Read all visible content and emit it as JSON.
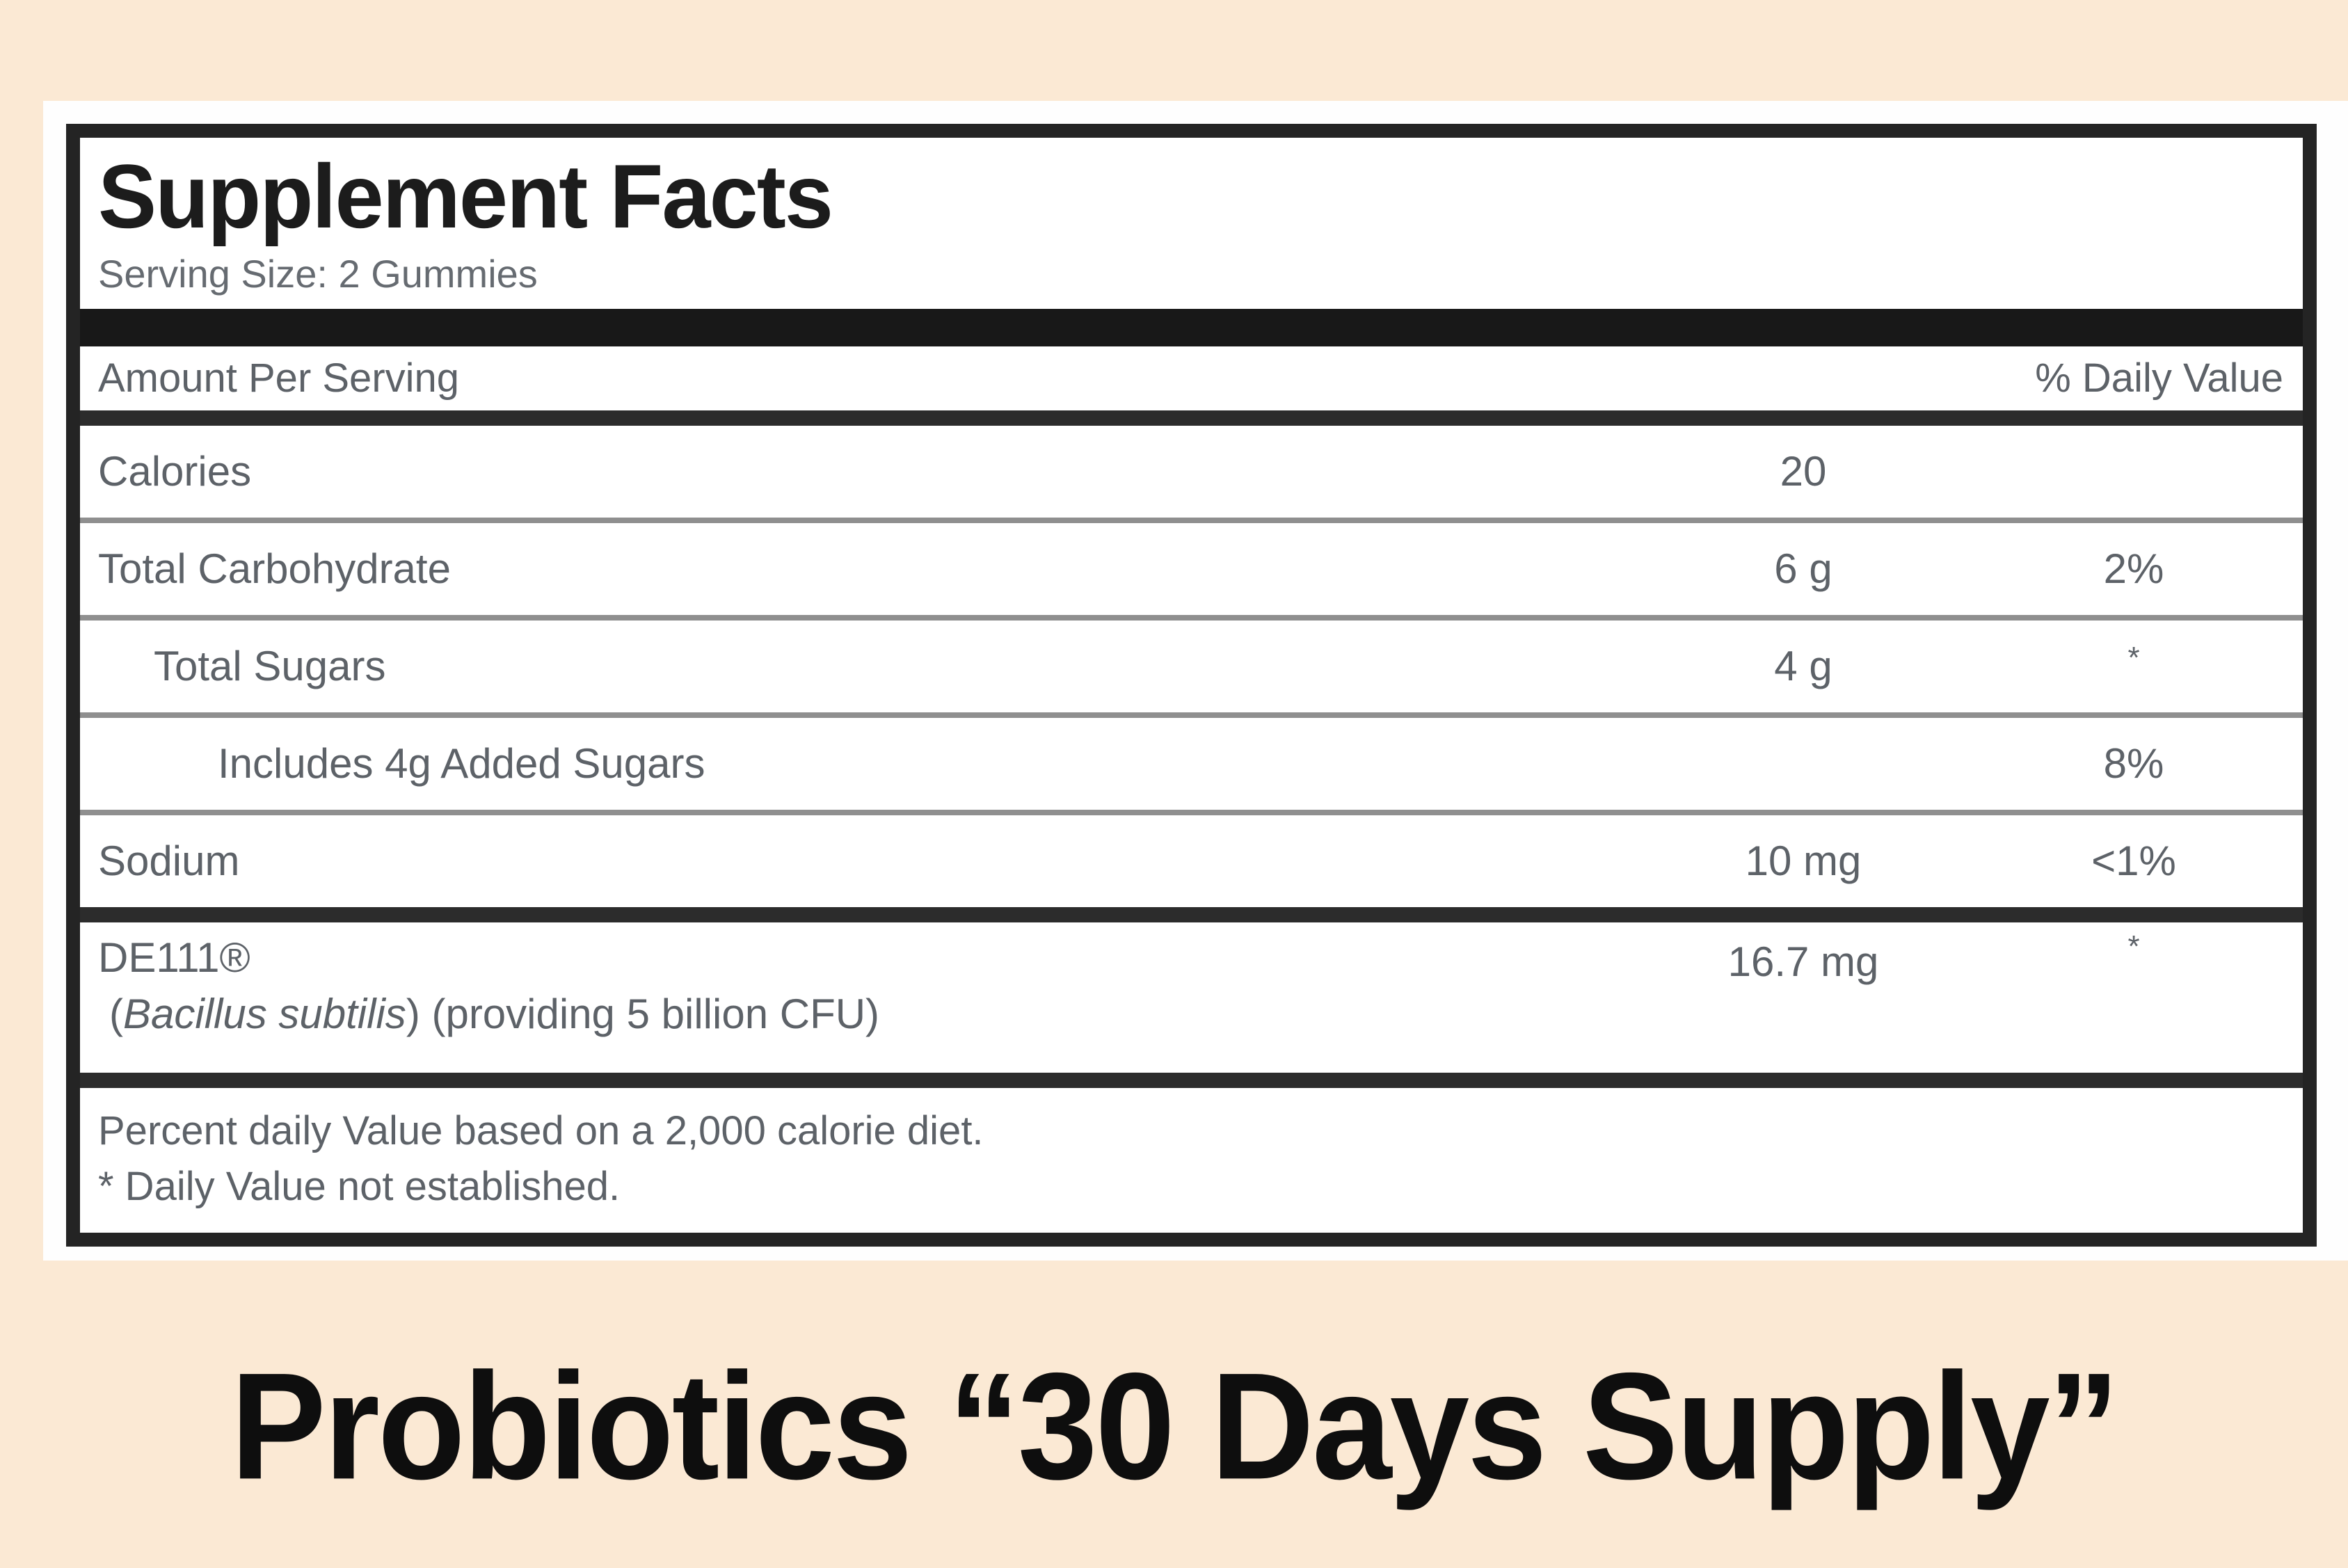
{
  "facts": {
    "title": "Supplement Facts",
    "serving_size": "Serving Size: 2 Gummies",
    "columns": {
      "amount_header": "Amount Per Serving",
      "dv_header": "% Daily Value"
    },
    "rows": [
      {
        "name": "Calories",
        "amount": "20",
        "dv": ""
      },
      {
        "name": "Total Carbohydrate",
        "amount": "6 g",
        "dv": "2%"
      },
      {
        "name": "Total Sugars",
        "amount": "4 g",
        "dv": "*"
      },
      {
        "name": "Includes 4g Added Sugars",
        "amount": "",
        "dv": "8%"
      },
      {
        "name": "Sodium",
        "amount": "10 mg",
        "dv": "<1%"
      },
      {
        "name": "DE111®",
        "sub_pre": "(",
        "sub_italic": "Bacillus subtilis",
        "sub_post": ") (providing 5 billion CFU)",
        "amount": "16.7 mg",
        "dv": "*"
      }
    ],
    "footnotes": [
      "Percent daily Value based on a 2,000 calorie diet.",
      "* Daily Value not established."
    ]
  },
  "caption": {
    "text": "Probiotics “30 Days Supply”"
  },
  "colors": {
    "background_peach": "#fbe9d4",
    "panel_white": "#fefefe",
    "border_black": "#242424",
    "thick_bar_black": "#181818",
    "thin_rule_gray": "#8f8f8f",
    "text_gray": "#5d6268",
    "title_black": "#1c1c1c",
    "caption_black": "#0e0e0e"
  }
}
